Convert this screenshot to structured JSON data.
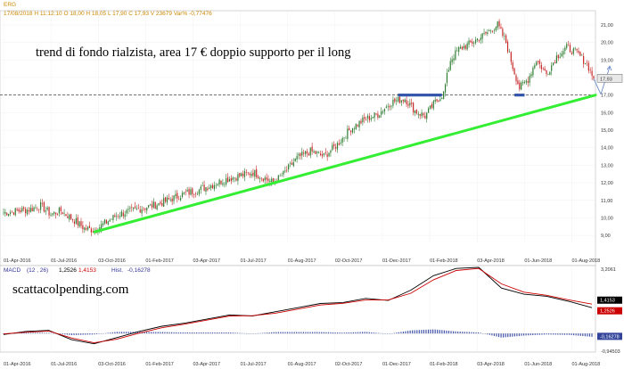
{
  "header": {
    "symbol": "ERG",
    "ohlc_text": "17/08/2018  H 11:12:10  O 18,00  H 18,05  L 17,90  C 17,93  V 23679  Var% -0,77476"
  },
  "annotations": {
    "main_text": "trend di fondo rialzista, area 17 € doppio supporto per il long",
    "watermark": "scattacolpending.com"
  },
  "colors": {
    "candle_up": "#2e7d32",
    "candle_down": "#c62828",
    "trendline": "#33ee33",
    "support_bar": "#3355aa",
    "forecast_arrow": "#6a8cc7",
    "macd_line": "#000000",
    "signal_line": "#cc0000",
    "histogram": "#4455aa",
    "last_price_bg": "#e8e8e8",
    "macd_badge_bg": "#000000",
    "signal_badge_bg": "#cc0000",
    "hist_badge_bg": "#33449a"
  },
  "chart_data": [
    {
      "type": "candlestick",
      "title": "",
      "ylim": [
        8.6,
        21.3
      ],
      "y_ticks": [
        "21,00",
        "20,00",
        "19,00",
        "18,00",
        "17,00",
        "16,00",
        "15,00",
        "14,00",
        "13,00",
        "12,00",
        "11,00",
        "10,00",
        "9,00"
      ],
      "y_tick_values": [
        21,
        20,
        19,
        18,
        17,
        16,
        15,
        14,
        13,
        12,
        11,
        10,
        9
      ],
      "x_ticks": [
        "01-Apr-2016",
        "01-Jul-2016",
        "03-Oct-2016",
        "01-Feb-2017",
        "03-Apr-2017",
        "01-Jul-2017",
        "01-Aug-2017",
        "02-Oct-2017",
        "01-Dec-2017",
        "01-Feb-2018",
        "03-Apr-2018",
        "01-Jun-2018",
        "01-Aug-2018"
      ],
      "last_price": 17.93,
      "last_price_label": "17,93",
      "price_path": [
        {
          "i": 0,
          "v": 10.3
        },
        {
          "i": 8,
          "v": 10.4
        },
        {
          "i": 16,
          "v": 10.5
        },
        {
          "i": 22,
          "v": 10.7
        },
        {
          "i": 28,
          "v": 10.2
        },
        {
          "i": 34,
          "v": 10.4
        },
        {
          "i": 40,
          "v": 10.0
        },
        {
          "i": 48,
          "v": 9.4
        },
        {
          "i": 54,
          "v": 9.3
        },
        {
          "i": 60,
          "v": 9.7
        },
        {
          "i": 68,
          "v": 10.2
        },
        {
          "i": 76,
          "v": 10.4
        },
        {
          "i": 84,
          "v": 10.6
        },
        {
          "i": 92,
          "v": 10.8
        },
        {
          "i": 100,
          "v": 11.1
        },
        {
          "i": 108,
          "v": 11.4
        },
        {
          "i": 116,
          "v": 11.6
        },
        {
          "i": 124,
          "v": 11.9
        },
        {
          "i": 132,
          "v": 12.2
        },
        {
          "i": 140,
          "v": 12.4
        },
        {
          "i": 148,
          "v": 12.6
        },
        {
          "i": 154,
          "v": 12.3
        },
        {
          "i": 160,
          "v": 12.0
        },
        {
          "i": 166,
          "v": 12.5
        },
        {
          "i": 174,
          "v": 13.4
        },
        {
          "i": 182,
          "v": 13.8
        },
        {
          "i": 190,
          "v": 13.5
        },
        {
          "i": 198,
          "v": 14.2
        },
        {
          "i": 206,
          "v": 15.1
        },
        {
          "i": 214,
          "v": 15.6
        },
        {
          "i": 222,
          "v": 15.9
        },
        {
          "i": 230,
          "v": 16.6
        },
        {
          "i": 238,
          "v": 16.8
        },
        {
          "i": 244,
          "v": 16.1
        },
        {
          "i": 250,
          "v": 15.8
        },
        {
          "i": 256,
          "v": 16.6
        },
        {
          "i": 261,
          "v": 17.1
        },
        {
          "i": 265,
          "v": 19.0
        },
        {
          "i": 270,
          "v": 19.6
        },
        {
          "i": 278,
          "v": 20.0
        },
        {
          "i": 286,
          "v": 20.5
        },
        {
          "i": 293,
          "v": 21.0
        },
        {
          "i": 298,
          "v": 20.0
        },
        {
          "i": 302,
          "v": 18.6
        },
        {
          "i": 306,
          "v": 17.4
        },
        {
          "i": 311,
          "v": 17.9
        },
        {
          "i": 316,
          "v": 19.0
        },
        {
          "i": 322,
          "v": 18.2
        },
        {
          "i": 328,
          "v": 19.2
        },
        {
          "i": 334,
          "v": 19.7
        },
        {
          "i": 340,
          "v": 19.4
        },
        {
          "i": 346,
          "v": 18.8
        },
        {
          "i": 350,
          "v": 17.93
        }
      ],
      "trendline": {
        "from": {
          "date": "03-Oct-2016",
          "value": 9.2
        },
        "to": {
          "date": "17-Aug-2018",
          "value": 17.0
        }
      },
      "support_level": 17.0,
      "support_zones": [
        {
          "from_i": 234,
          "to_i": 260,
          "value": 17.0
        },
        {
          "from_i": 303,
          "to_i": 309,
          "value": 17.0
        }
      ]
    },
    {
      "type": "line",
      "title": "MACD",
      "legend_text": "(12 , 26)",
      "legend_values": {
        "macd": "1,2526",
        "signal": "1,4153",
        "hist": "-0,16278"
      },
      "hist_label": "Hist.",
      "ylim": [
        -0.9,
        3.2
      ],
      "y_ticks": [
        "3,2061",
        "-0,94503"
      ],
      "x_ticks": [
        "01-Apr-2016",
        "01-Jul-2016",
        "03-Oct-2016",
        "01-Feb-2017",
        "03-Apr-2017",
        "01-Jul-2017",
        "01-Aug-2017",
        "02-Oct-2017",
        "01-Dec-2017",
        "01-Feb-2018",
        "03-Apr-2018",
        "01-Jun-2018",
        "01-Aug-2018"
      ],
      "badges": [
        "1,4153",
        "1,2526",
        "-0,16278"
      ],
      "series": [
        {
          "name": "MACD",
          "values": [
            -0.05,
            0.1,
            0.15,
            -0.3,
            -0.5,
            -0.2,
            0.1,
            0.35,
            0.5,
            0.7,
            0.9,
            0.85,
            1.05,
            1.25,
            1.45,
            1.5,
            1.7,
            1.6,
            2.1,
            2.8,
            3.15,
            3.2,
            2.2,
            1.9,
            1.8,
            1.55,
            1.25
          ]
        },
        {
          "name": "Signal",
          "values": [
            -0.02,
            0.06,
            0.12,
            -0.22,
            -0.45,
            -0.28,
            0.02,
            0.28,
            0.45,
            0.65,
            0.85,
            0.86,
            0.98,
            1.18,
            1.38,
            1.46,
            1.62,
            1.62,
            1.95,
            2.6,
            3.05,
            3.15,
            2.4,
            2.0,
            1.85,
            1.62,
            1.42
          ]
        },
        {
          "name": "Hist",
          "values": [
            -0.03,
            0.04,
            0.03,
            -0.08,
            -0.05,
            0.08,
            0.08,
            0.07,
            0.05,
            0.05,
            0.05,
            -0.01,
            0.07,
            0.07,
            0.07,
            0.04,
            0.08,
            -0.02,
            0.15,
            0.2,
            0.1,
            0.05,
            -0.2,
            -0.1,
            -0.05,
            -0.07,
            -0.16
          ]
        }
      ]
    }
  ]
}
